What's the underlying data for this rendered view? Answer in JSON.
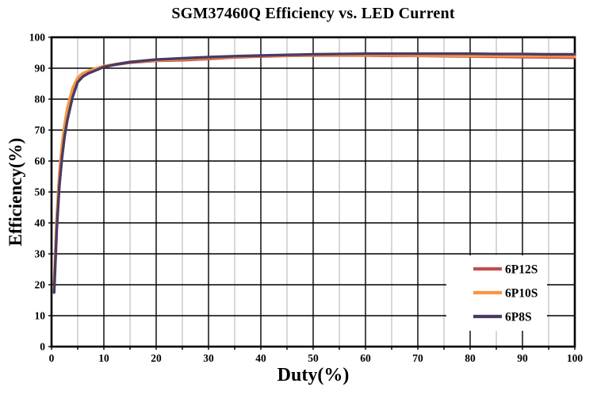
{
  "chart_data": {
    "type": "line",
    "title": "SGM37460Q Efficiency vs. LED Current",
    "xlabel": "Duty(%)",
    "ylabel": "Efficiency(%)",
    "xlim": [
      0,
      100
    ],
    "ylim": [
      0,
      100
    ],
    "x_ticks": [
      0,
      10,
      20,
      30,
      40,
      50,
      60,
      70,
      80,
      90,
      100
    ],
    "y_ticks": [
      0,
      10,
      20,
      30,
      40,
      50,
      60,
      70,
      80,
      90,
      100
    ],
    "grid": {
      "horizontal_major_color": "#000000",
      "vertical_major_color": "#000000",
      "vertical_minor_color": "#bdbdbd",
      "x_minor_step": 5,
      "x_major_step": 10,
      "y_major_step": 10
    },
    "legend_position": "inside-lower-right",
    "x": [
      0.5,
      1,
      1.5,
      2,
      2.5,
      3,
      4,
      5,
      6,
      7,
      8,
      10,
      12.5,
      15,
      20,
      25,
      30,
      35,
      40,
      45,
      50,
      55,
      60,
      65,
      70,
      75,
      80,
      85,
      90,
      95,
      100
    ],
    "series": [
      {
        "name": "6P12S",
        "color": "#C0504D",
        "values": [
          20,
          41,
          55,
          64,
          70.5,
          75.5,
          82.5,
          86.5,
          88,
          88.8,
          89.4,
          90.5,
          91.2,
          91.8,
          92.4,
          92.6,
          93.0,
          93.5,
          93.8,
          94.0,
          94.1,
          94.1,
          94.1,
          94.0,
          94.0,
          93.9,
          93.8,
          93.7,
          93.6,
          93.5,
          93.4
        ]
      },
      {
        "name": "6P10S",
        "color": "#F79646",
        "values": [
          21,
          42.5,
          56.5,
          65.5,
          72,
          77,
          83.5,
          87,
          88.4,
          89.1,
          89.7,
          90.7,
          91.4,
          92.0,
          92.6,
          92.9,
          93.3,
          93.7,
          94.0,
          94.1,
          94.2,
          94.2,
          94.2,
          94.2,
          94.1,
          94.1,
          94.0,
          94.0,
          93.9,
          93.9,
          93.8
        ]
      },
      {
        "name": "6P8S",
        "color": "#4A3B63",
        "values": [
          17.5,
          38,
          52,
          61,
          68,
          73,
          80.5,
          85.5,
          87.3,
          88.3,
          89.0,
          90.4,
          91.3,
          92.0,
          92.8,
          93.2,
          93.6,
          93.9,
          94.1,
          94.3,
          94.5,
          94.6,
          94.7,
          94.7,
          94.7,
          94.7,
          94.7,
          94.6,
          94.6,
          94.5,
          94.5
        ]
      }
    ]
  }
}
